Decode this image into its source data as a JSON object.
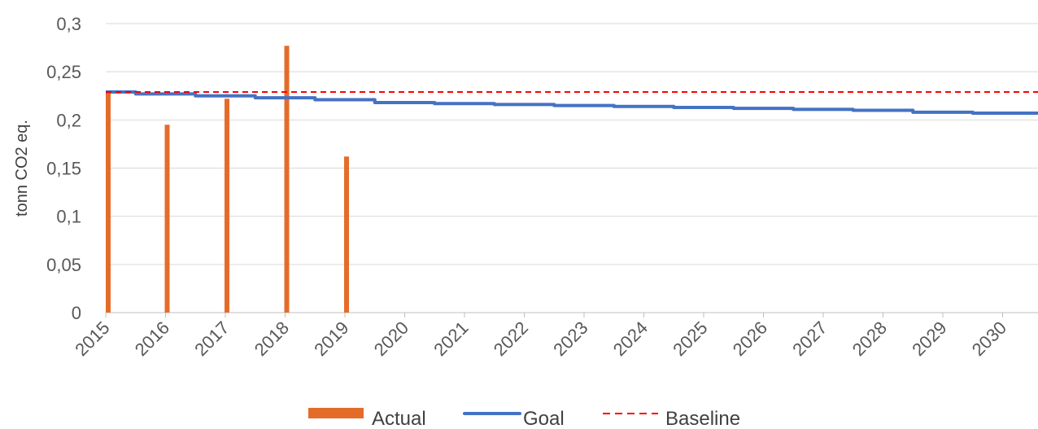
{
  "chart_data": {
    "type": "bar",
    "ylabel": "tonn CO2 eq.",
    "ylim": [
      0,
      0.3
    ],
    "yticks": [
      "0",
      "0,05",
      "0,1",
      "0,15",
      "0,2",
      "0,25",
      "0,3"
    ],
    "ytick_values": [
      0,
      0.05,
      0.1,
      0.15,
      0.2,
      0.25,
      0.3
    ],
    "xticks": [
      "2015",
      "2016",
      "2017",
      "2018",
      "2019",
      "2020",
      "2021",
      "2022",
      "2023",
      "2024",
      "2025",
      "2026",
      "2027",
      "2028",
      "2029",
      "2030"
    ],
    "grid": true,
    "legend_position": "bottom",
    "series": [
      {
        "name": "Actual",
        "kind": "bar",
        "color": "#E46C2A",
        "x": [
          2015,
          2016,
          2017,
          2018,
          2019
        ],
        "values": [
          0.228,
          0.195,
          0.222,
          0.277,
          0.162
        ]
      },
      {
        "name": "Goal",
        "kind": "step-line",
        "color": "#4472C4",
        "x": [
          2015,
          2015.5,
          2016.5,
          2017.5,
          2018.5,
          2019.5,
          2020.5,
          2021.5,
          2022.5,
          2023.5,
          2024.5,
          2025.5,
          2026.5,
          2027.5,
          2028.5,
          2029.5
        ],
        "values": [
          0.229,
          0.227,
          0.225,
          0.223,
          0.221,
          0.218,
          0.217,
          0.216,
          0.215,
          0.214,
          0.213,
          0.212,
          0.211,
          0.21,
          0.208,
          0.207
        ]
      },
      {
        "name": "Baseline",
        "kind": "dashed-line",
        "color": "#FF0000",
        "values": [
          0.229
        ]
      }
    ]
  }
}
